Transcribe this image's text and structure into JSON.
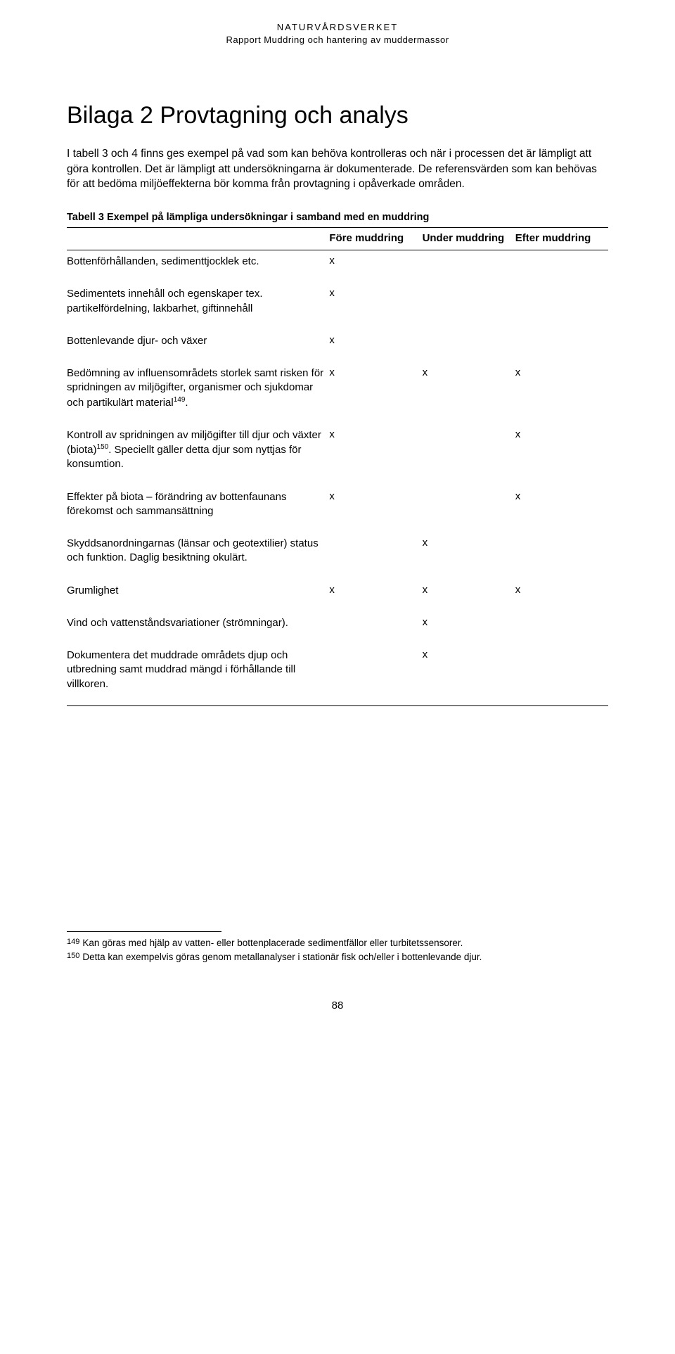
{
  "header": {
    "line1": "NATURVÅRDSVERKET",
    "line2": "Rapport Muddring och hantering av muddermassor"
  },
  "title": "Bilaga 2 Provtagning och analys",
  "intro": "I tabell 3 och 4 finns ges exempel på vad som kan behöva kontrolleras och när i processen det är lämpligt att göra kontrollen. Det är lämpligt att undersökningarna är dokumenterade. De referensvärden som kan behövas för att bedöma miljöeffekterna bör komma från provtagning i opåverkade områden.",
  "table": {
    "caption": "Tabell 3 Exempel på lämpliga undersökningar i samband med en muddring",
    "columns": {
      "fore": "Före muddring",
      "under": "Under muddring",
      "efter": "Efter muddring"
    },
    "rows": [
      {
        "desc": "Bottenförhållanden, sedimenttjocklek etc.",
        "fore": "x",
        "under": "",
        "efter": ""
      },
      {
        "desc": "Sedimentets innehåll och egenskaper tex. partikelfördelning, lakbarhet, giftinnehåll",
        "fore": "x",
        "under": "",
        "efter": ""
      },
      {
        "desc": "Bottenlevande djur- och växer",
        "fore": "x",
        "under": "",
        "efter": ""
      },
      {
        "desc_html": "Bedömning av influensområdets storlek samt risken för spridningen av miljögifter, organismer och sjukdomar och partikulärt material<span class=\"sup\">149</span>.",
        "fore": "x",
        "under": "x",
        "efter": "x"
      },
      {
        "desc_html": "Kontroll av spridningen av miljögifter till djur och växter (biota)<span class=\"sup\">150</span>. Speciellt gäller detta djur som nyttjas för konsumtion.",
        "fore": "x",
        "under": "",
        "efter": "x"
      },
      {
        "desc": "Effekter på biota – förändring av bottenfaunans förekomst och sammansättning",
        "fore": "x",
        "under": "",
        "efter": "x"
      },
      {
        "desc": "Skyddsanordningarnas (länsar och geotextilier) status och funktion. Daglig besiktning okulärt.",
        "fore": "",
        "under": "x",
        "efter": ""
      },
      {
        "desc": "Grumlighet",
        "fore": "x",
        "under": "x",
        "efter": "x"
      },
      {
        "desc": "Vind och vattenståndsvariationer (strömningar).",
        "fore": "",
        "under": "x",
        "efter": ""
      },
      {
        "desc": "Dokumentera det muddrade områdets djup och utbredning samt muddrad mängd i förhållande till villkoren.",
        "fore": "",
        "under": "x",
        "efter": ""
      }
    ]
  },
  "footnotes": [
    {
      "num": "149",
      "text": "Kan göras med hjälp av vatten- eller bottenplacerade sedimentfällor eller turbitetssensorer."
    },
    {
      "num": "150",
      "text": "Detta kan exempelvis göras genom metallanalyser i stationär fisk och/eller i bottenlevande djur."
    }
  ],
  "page_number": "88"
}
